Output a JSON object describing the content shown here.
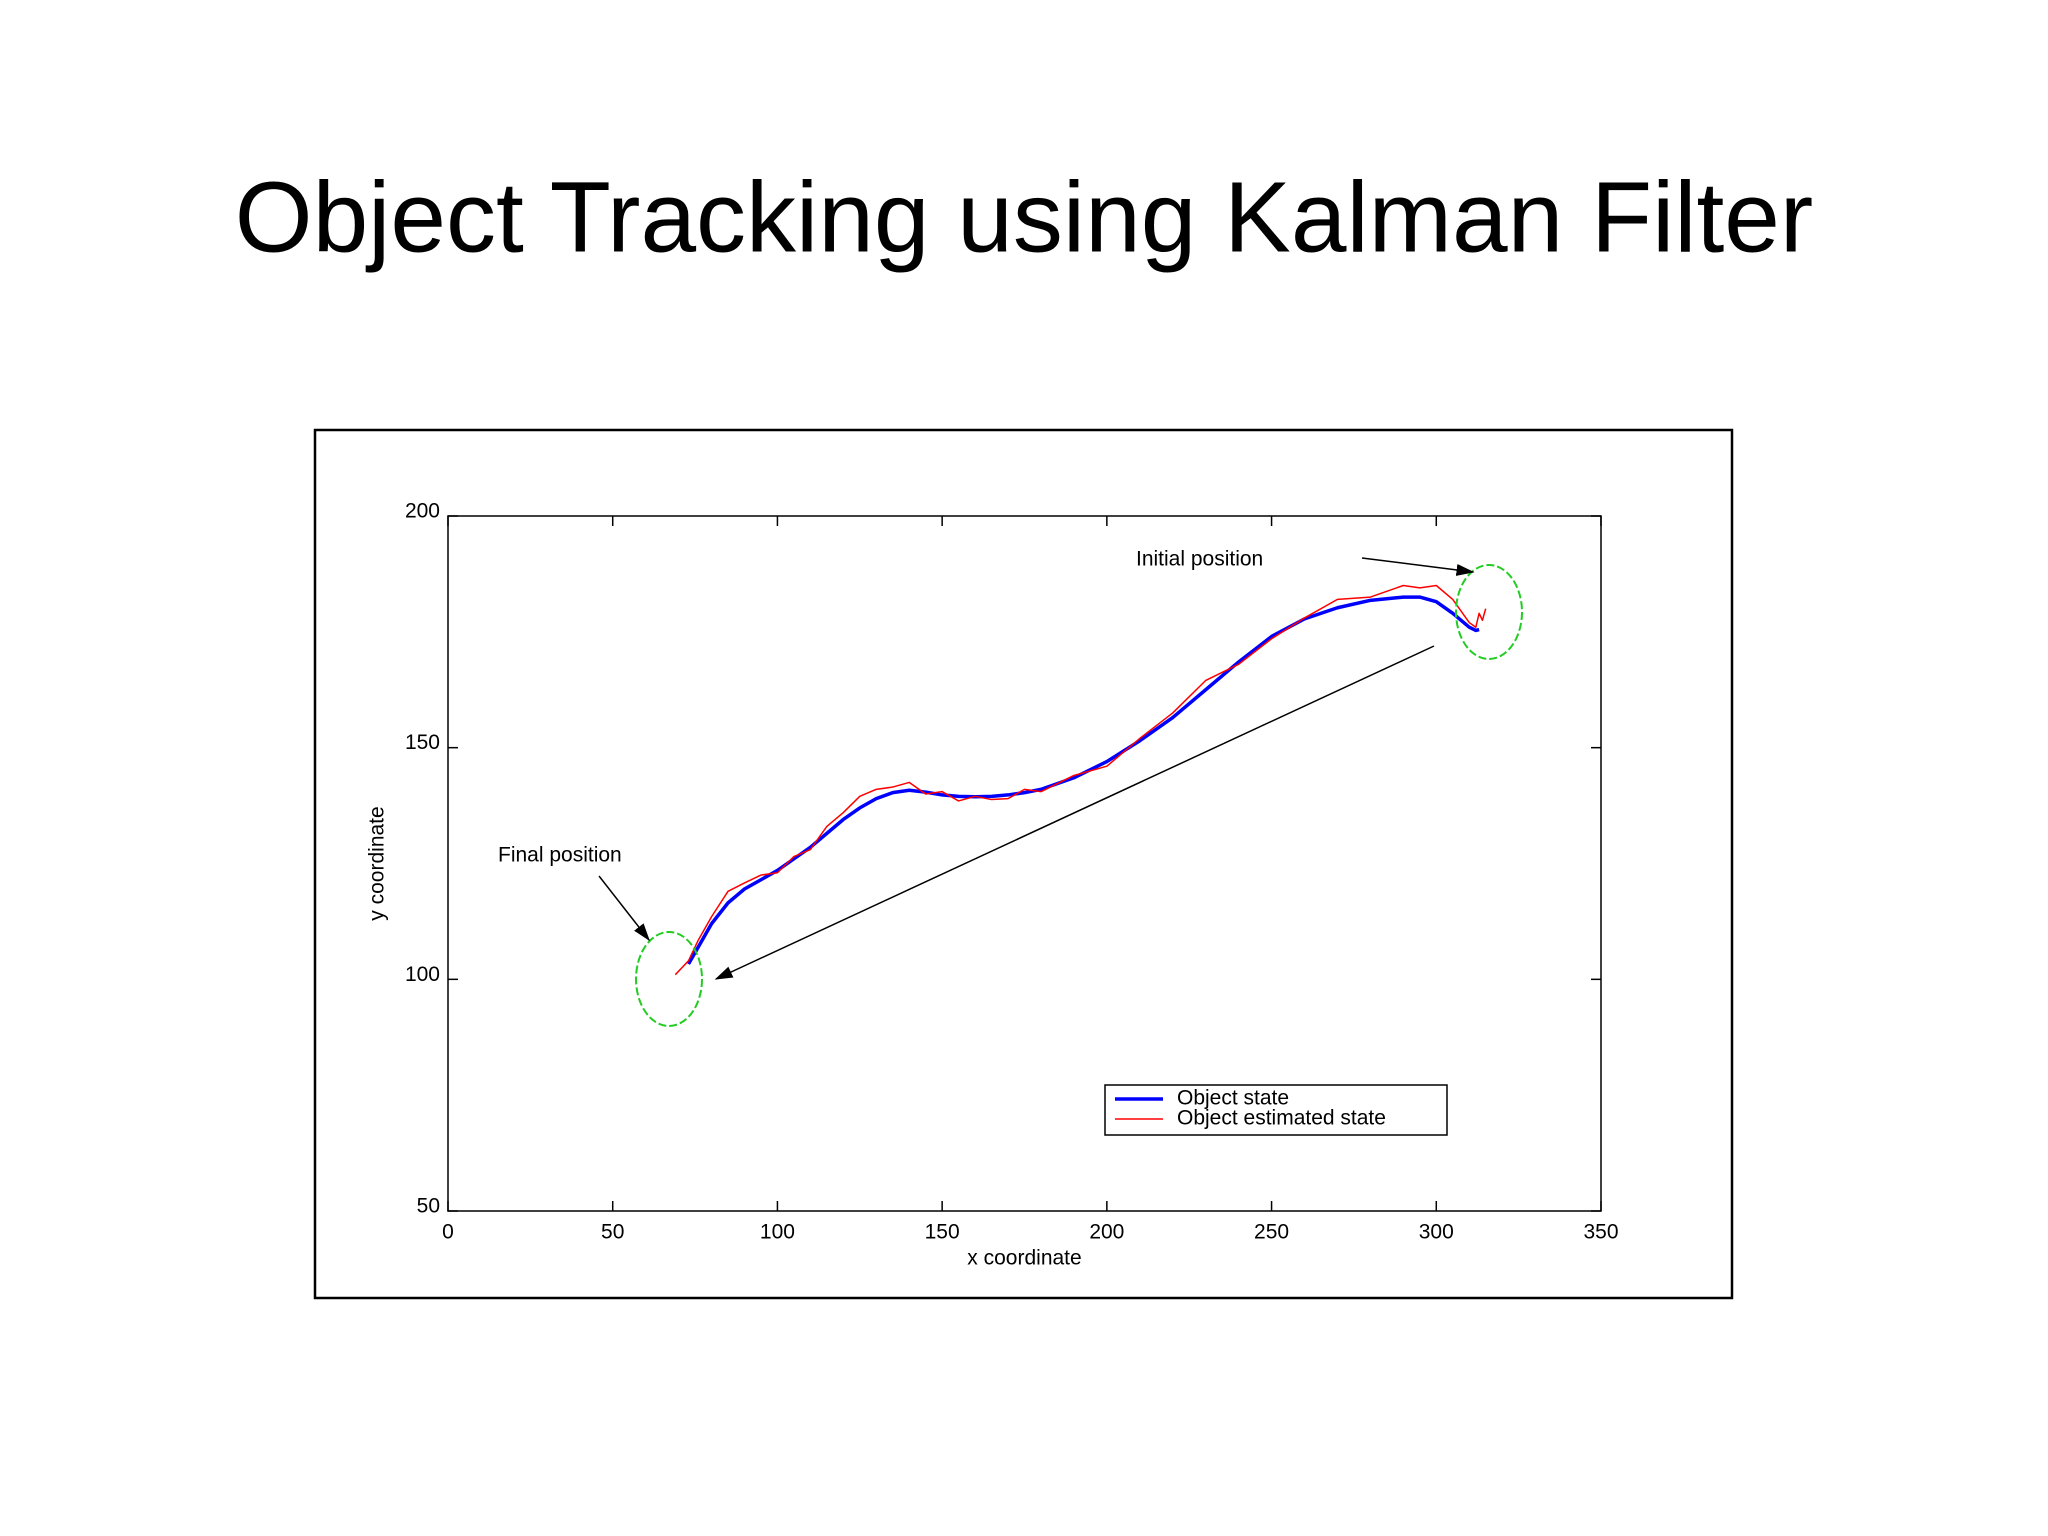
{
  "title": "Object Tracking using Kalman Filter",
  "chart_data": {
    "type": "line",
    "xlabel": "x coordinate",
    "ylabel": "y coordinate",
    "annotations": [
      "Initial position",
      "Final position"
    ],
    "x": [
      69,
      71,
      73,
      76,
      80,
      85,
      90,
      95,
      100,
      105,
      110,
      115,
      120,
      125,
      130,
      135,
      140,
      145,
      150,
      155,
      160,
      165,
      170,
      175,
      180,
      190,
      200,
      210,
      220,
      230,
      240,
      250,
      260,
      270,
      280,
      290,
      295,
      300,
      305,
      310,
      312,
      313,
      314,
      315
    ],
    "series": [
      {
        "name": "Object state",
        "color": "#0000ff",
        "width": 3.5,
        "values": [
          null,
          null,
          103.3,
          107,
          112,
          116.5,
          119.5,
          121.5,
          123.5,
          126,
          128.5,
          131.5,
          134.5,
          137,
          139,
          140.3,
          140.8,
          140.4,
          139.8,
          139.5,
          139.4,
          139.5,
          139.8,
          140.3,
          141,
          143.5,
          147,
          151.5,
          156.5,
          162.5,
          168.5,
          174,
          177.8,
          180.2,
          181.8,
          182.5,
          182.5,
          181.5,
          179,
          176,
          175.3,
          175.5,
          null,
          null
        ]
      },
      {
        "name": "Object estimated state",
        "color": "#ff0000",
        "width": 1.5,
        "values": [
          101,
          102.5,
          104,
          108.5,
          113.5,
          119,
          120.8,
          122.5,
          123,
          126.5,
          128,
          133,
          136,
          139.5,
          141,
          141.5,
          142.5,
          140,
          140.5,
          138.5,
          139.5,
          138.8,
          139,
          141,
          140.5,
          144,
          146,
          152,
          157.5,
          164.5,
          168,
          173.5,
          178,
          182,
          182.5,
          185,
          184.5,
          185,
          182,
          177,
          176,
          179,
          177.5,
          180
        ]
      }
    ],
    "xlim": [
      0,
      350
    ],
    "ylim": [
      50,
      200
    ],
    "xticks": [
      0,
      50,
      100,
      150,
      200,
      250,
      300,
      350
    ],
    "yticks": [
      50,
      100,
      150,
      200
    ],
    "legend": "lower right"
  }
}
